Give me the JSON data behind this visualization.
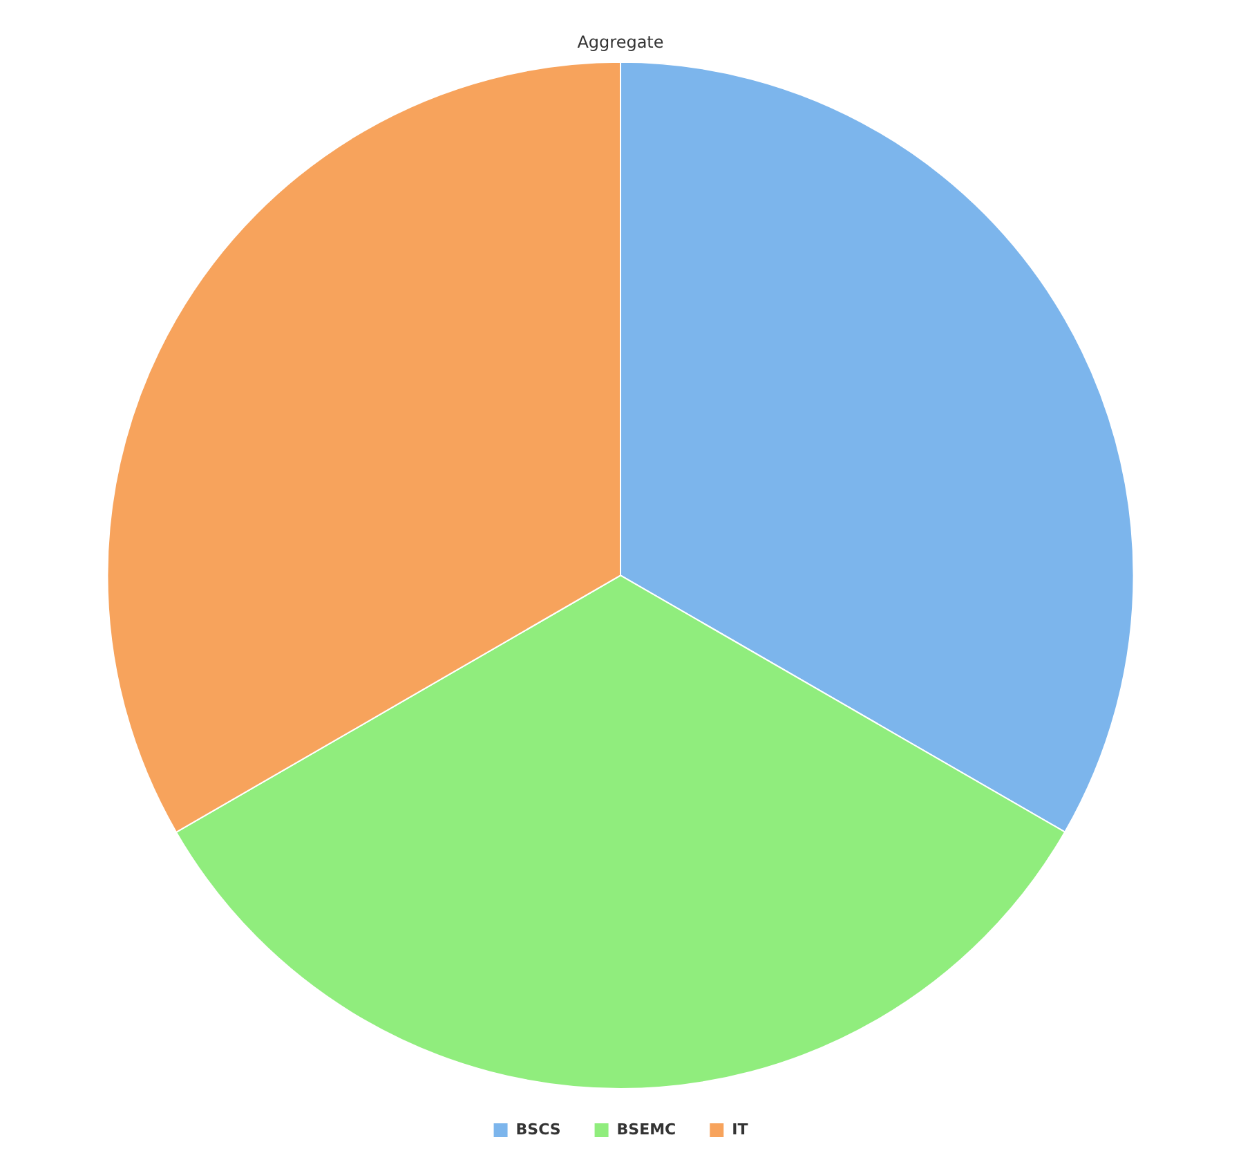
{
  "chart_data": {
    "type": "pie",
    "title": "Aggregate",
    "categories": [
      "BSCS",
      "BSEMC",
      "IT"
    ],
    "values": [
      33.33,
      33.33,
      33.34
    ],
    "colors": [
      "#7cb5ec",
      "#90ed7d",
      "#f7a35c"
    ],
    "legend": "bottom"
  }
}
